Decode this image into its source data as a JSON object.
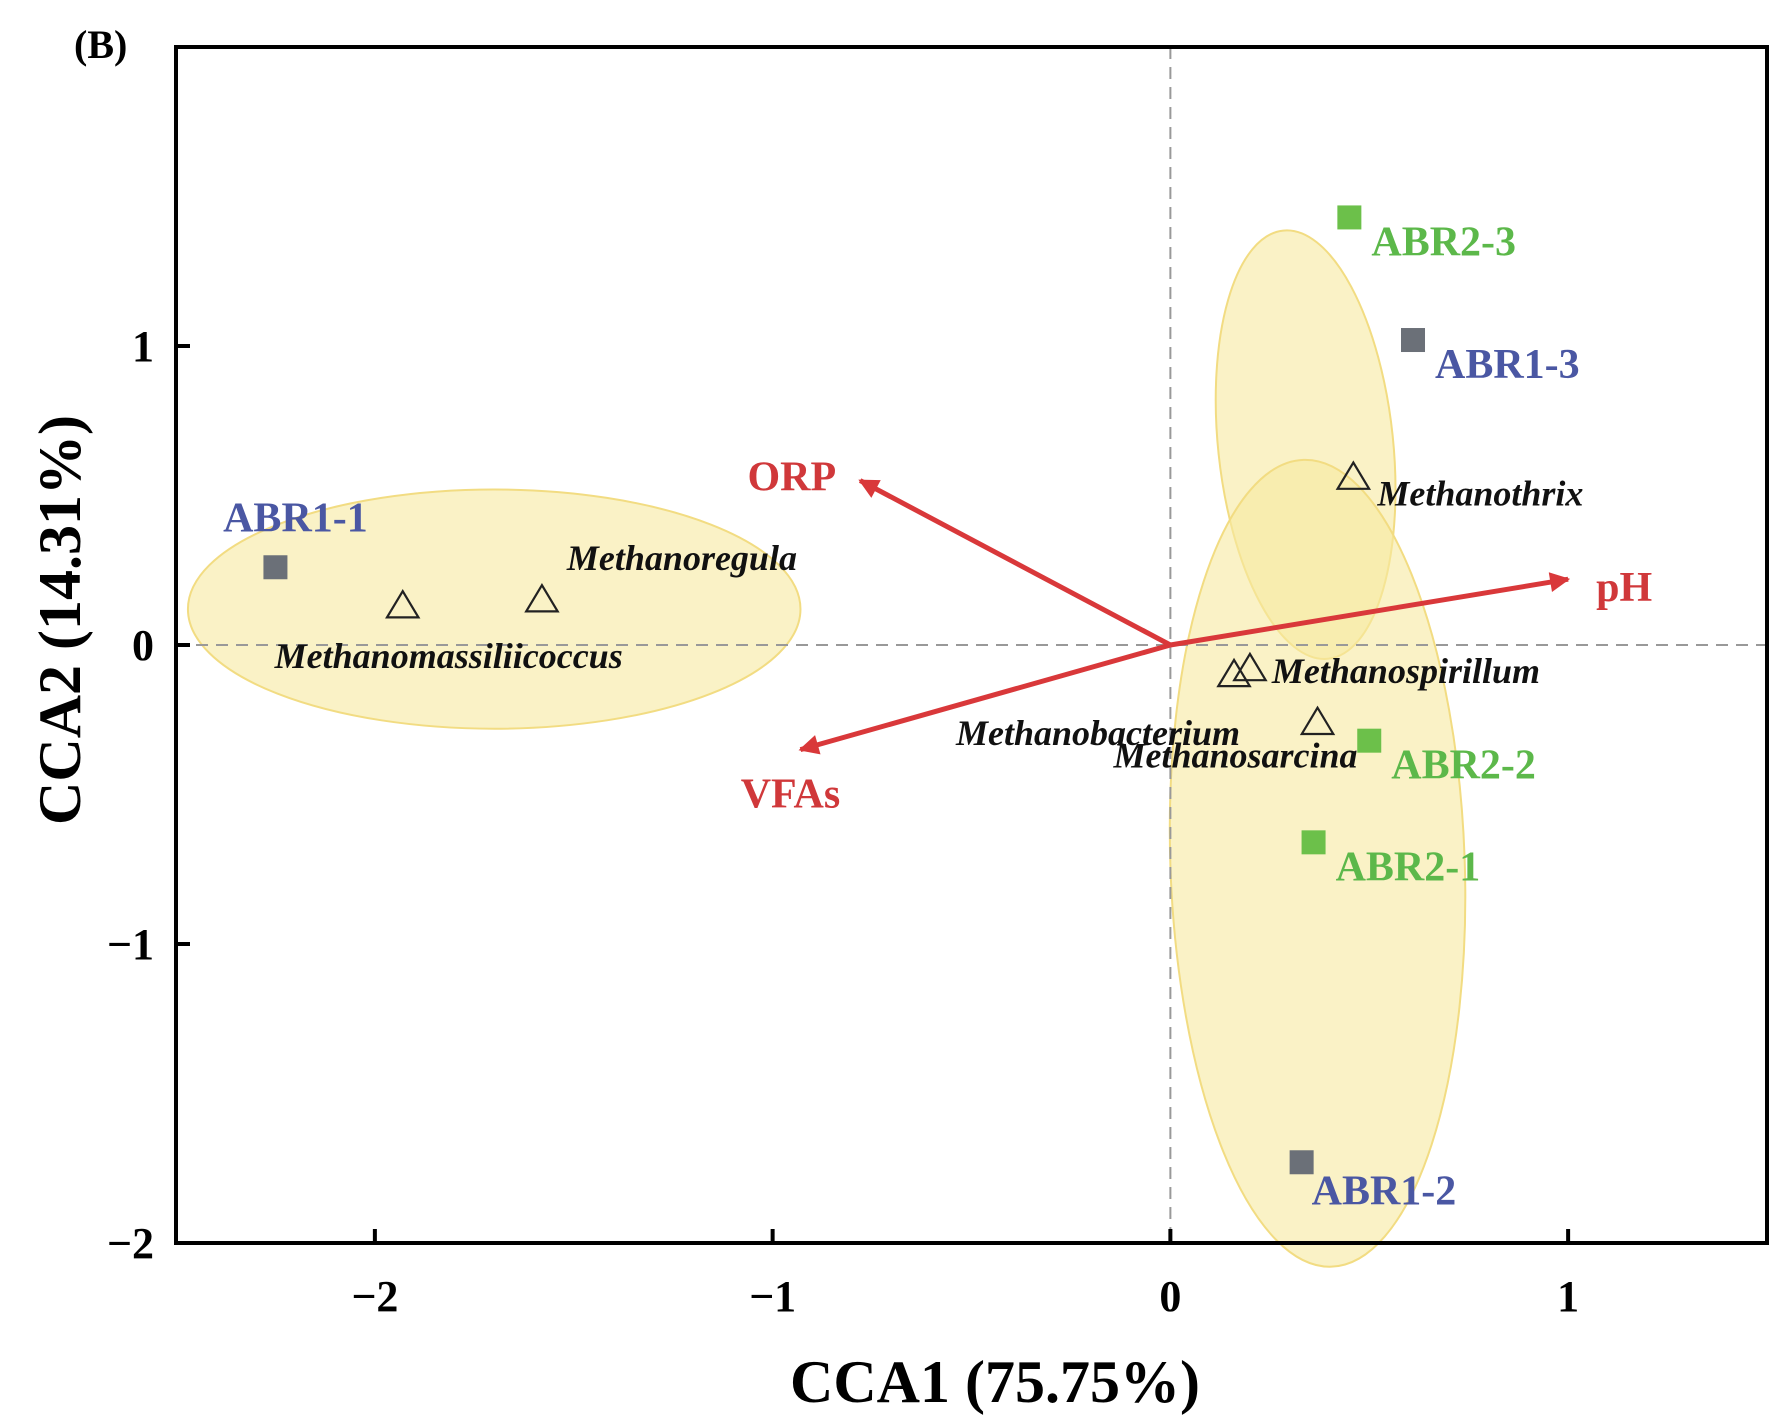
{
  "chart_data": {
    "type": "scatter",
    "panel_label": "(B)",
    "xlabel": "CCA1 (75.75%)",
    "ylabel": "CCA2 (14.31%)",
    "xlim": [
      -2.5,
      1.5
    ],
    "ylim": [
      -2,
      2
    ],
    "x_ticks": [
      {
        "value": -2,
        "label": "−2"
      },
      {
        "value": -1,
        "label": "−1"
      },
      {
        "value": 0,
        "label": "0"
      },
      {
        "value": 1,
        "label": "1"
      }
    ],
    "y_ticks": [
      {
        "value": -2,
        "label": "−2"
      },
      {
        "value": -1,
        "label": "−1"
      },
      {
        "value": 0,
        "label": "0"
      },
      {
        "value": 1,
        "label": "1"
      }
    ],
    "reference_lines": {
      "x": 0,
      "y": 0,
      "style": "dashed"
    },
    "colors": {
      "ABR1": "#6b7078",
      "ABR1_label": "#4a57a3",
      "ABR2": "#6cc04a",
      "ABR2_label": "#5cb84a",
      "ellipse_fill": "#f7e9a0",
      "ellipse_stroke": "#f2dc82",
      "arrow": "#d9383a",
      "env_label": "#d0383a",
      "species_marker": "#222222"
    },
    "groups": [
      {
        "name": "ABR1-1 cluster",
        "center": [
          -1.7,
          0.12
        ],
        "radii": [
          0.77,
          0.4
        ],
        "angle_deg": 0
      },
      {
        "name": "upper right cluster",
        "center": [
          0.34,
          0.67
        ],
        "radii": [
          0.72,
          0.22
        ],
        "angle_deg": 96
      },
      {
        "name": "lower right cluster",
        "center": [
          0.37,
          -0.73
        ],
        "radii": [
          1.35,
          0.37
        ],
        "angle_deg": 92
      }
    ],
    "samples": [
      {
        "label": "ABR1-1",
        "group": "ABR1",
        "x": -2.25,
        "y": 0.26,
        "label_anchor": "above"
      },
      {
        "label": "ABR1-2",
        "group": "ABR1",
        "x": 0.33,
        "y": -1.73,
        "label_anchor": "below-right"
      },
      {
        "label": "ABR1-3",
        "group": "ABR1",
        "x": 0.61,
        "y": 1.02,
        "label_anchor": "right"
      },
      {
        "label": "ABR2-1",
        "group": "ABR2",
        "x": 0.36,
        "y": -0.66,
        "label_anchor": "right"
      },
      {
        "label": "ABR2-2",
        "group": "ABR2",
        "x": 0.5,
        "y": -0.32,
        "label_anchor": "right"
      },
      {
        "label": "ABR2-3",
        "group": "ABR2",
        "x": 0.45,
        "y": 1.43,
        "label_anchor": "right"
      }
    ],
    "species": [
      {
        "label": "Methanomassiliicoccus",
        "x": -1.93,
        "y": 0.13,
        "label_anchor": "below-left"
      },
      {
        "label": "Methanoregula",
        "x": -1.58,
        "y": 0.15,
        "label_anchor": "above"
      },
      {
        "label": "Methanothrix",
        "x": 0.46,
        "y": 0.56,
        "label_anchor": "right"
      },
      {
        "label": "Methanospirillum",
        "x": 0.2,
        "y": -0.08,
        "label_anchor": "right"
      },
      {
        "label": "Methanobacterium",
        "x": 0.16,
        "y": -0.1,
        "label_anchor": "below-left"
      },
      {
        "label": "Methanosarcina",
        "x": 0.37,
        "y": -0.26,
        "label_anchor": "below-left"
      }
    ],
    "environmental_vectors": [
      {
        "label": "ORP",
        "x": -0.78,
        "y": 0.55
      },
      {
        "label": "pH",
        "x": 1.0,
        "y": 0.22
      },
      {
        "label": "VFAs",
        "x": -0.93,
        "y": -0.35
      }
    ]
  }
}
